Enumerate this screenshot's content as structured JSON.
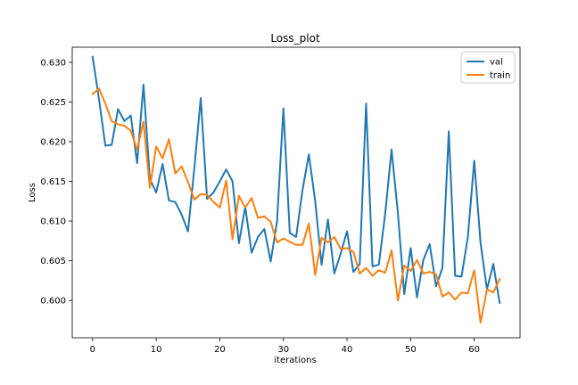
{
  "chart_data": {
    "type": "line",
    "title": "Loss_plot",
    "xlabel": "iterations",
    "ylabel": "Loss",
    "xlim": [
      -3.2,
      67.2
    ],
    "ylim": [
      0.5953,
      0.6319
    ],
    "xticks": [
      0,
      10,
      20,
      30,
      40,
      50,
      60
    ],
    "yticks": [
      0.6,
      0.605,
      0.61,
      0.615,
      0.62,
      0.625,
      0.63
    ],
    "ytick_labels": [
      "0.600",
      "0.605",
      "0.610",
      "0.615",
      "0.620",
      "0.625",
      "0.630"
    ],
    "grid": false,
    "legend_position": "top-right",
    "series": [
      {
        "name": "val",
        "color": "#1f77b4",
        "values": [
          0.6307,
          0.6254,
          0.6195,
          0.6196,
          0.6241,
          0.6226,
          0.6233,
          0.6173,
          0.6272,
          0.6153,
          0.6136,
          0.6172,
          0.6126,
          0.6124,
          0.6108,
          0.6087,
          0.6167,
          0.6255,
          0.6128,
          0.6136,
          0.615,
          0.6165,
          0.615,
          0.6072,
          0.6118,
          0.606,
          0.608,
          0.609,
          0.6049,
          0.61,
          0.6242,
          0.6085,
          0.608,
          0.6139,
          0.6184,
          0.6125,
          0.6045,
          0.6102,
          0.6034,
          0.6059,
          0.6087,
          0.6036,
          0.6046,
          0.6248,
          0.6043,
          0.6045,
          0.6109,
          0.619,
          0.611,
          0.6008,
          0.6066,
          0.6004,
          0.6051,
          0.6071,
          0.6018,
          0.6041,
          0.6213,
          0.6031,
          0.603,
          0.608,
          0.6176,
          0.6072,
          0.6014,
          0.6046,
          0.5997
        ]
      },
      {
        "name": "train",
        "color": "#ff7f0e",
        "values": [
          0.626,
          0.6267,
          0.6248,
          0.6226,
          0.6222,
          0.622,
          0.6214,
          0.619,
          0.6225,
          0.6142,
          0.6194,
          0.6179,
          0.6203,
          0.616,
          0.6169,
          0.6149,
          0.6127,
          0.6134,
          0.6133,
          0.6124,
          0.6117,
          0.6151,
          0.6077,
          0.6132,
          0.6117,
          0.6129,
          0.6104,
          0.6106,
          0.6099,
          0.6073,
          0.6078,
          0.6074,
          0.607,
          0.607,
          0.6097,
          0.6032,
          0.6079,
          0.6073,
          0.608,
          0.6065,
          0.6066,
          0.6061,
          0.6034,
          0.6041,
          0.6031,
          0.6038,
          0.6035,
          0.6063,
          0.6,
          0.6044,
          0.6037,
          0.6051,
          0.6034,
          0.6036,
          0.6033,
          0.6005,
          0.601,
          0.6001,
          0.601,
          0.6009,
          0.6038,
          0.5972,
          0.6014,
          0.601,
          0.6027
        ]
      }
    ]
  }
}
